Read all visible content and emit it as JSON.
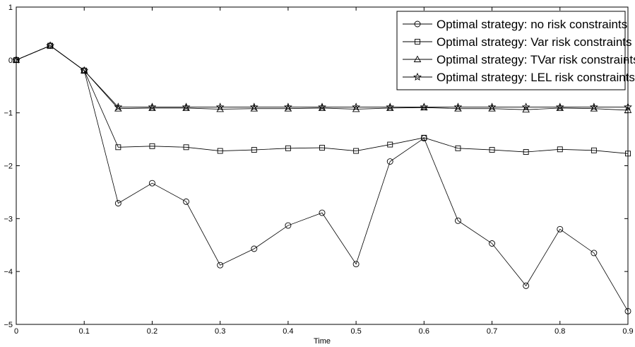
{
  "chart_data": {
    "type": "line",
    "title": "",
    "xlabel": "Time",
    "ylabel": "",
    "xlim": [
      0,
      0.9
    ],
    "ylim": [
      -5,
      1
    ],
    "x_ticks": [
      "0",
      "0.1",
      "0.2",
      "0.3",
      "0.4",
      "0.5",
      "0.6",
      "0.7",
      "0.8",
      "0.9"
    ],
    "y_ticks": [
      "1",
      "0",
      "−1",
      "−2",
      "−3",
      "−4",
      "−5"
    ],
    "grid": false,
    "legend_position": "top-right",
    "x": [
      0,
      0.05,
      0.1,
      0.15,
      0.2,
      0.25,
      0.3,
      0.35,
      0.4,
      0.45,
      0.5,
      0.55,
      0.6,
      0.65,
      0.7,
      0.75,
      0.8,
      0.85,
      0.9
    ],
    "series": [
      {
        "name": "Optimal strategy: no risk constraints",
        "marker": "circle",
        "values": [
          0,
          0.27,
          -0.2,
          -2.71,
          -2.33,
          -2.68,
          -3.88,
          -3.57,
          -3.13,
          -2.89,
          -3.86,
          -1.92,
          -1.48,
          -3.04,
          -3.47,
          -4.27,
          -3.2,
          -3.65,
          -4.75
        ]
      },
      {
        "name": "Optimal strategy: Var risk constraints",
        "marker": "square",
        "values": [
          0,
          0.27,
          -0.2,
          -1.65,
          -1.63,
          -1.65,
          -1.72,
          -1.7,
          -1.67,
          -1.66,
          -1.72,
          -1.6,
          -1.47,
          -1.67,
          -1.7,
          -1.74,
          -1.69,
          -1.71,
          -1.77
        ]
      },
      {
        "name": "Optimal strategy: TVar risk constraints",
        "marker": "triangle",
        "values": [
          0,
          0.27,
          -0.2,
          -0.92,
          -0.91,
          -0.91,
          -0.93,
          -0.92,
          -0.92,
          -0.91,
          -0.93,
          -0.91,
          -0.9,
          -0.92,
          -0.92,
          -0.94,
          -0.91,
          -0.92,
          -0.95
        ]
      },
      {
        "name": "Optimal strategy: LEL risk constraints",
        "marker": "star",
        "values": [
          0,
          0.27,
          -0.2,
          -0.89,
          -0.89,
          -0.89,
          -0.89,
          -0.89,
          -0.89,
          -0.89,
          -0.89,
          -0.89,
          -0.89,
          -0.89,
          -0.89,
          -0.89,
          -0.89,
          -0.89,
          -0.89
        ]
      }
    ]
  }
}
